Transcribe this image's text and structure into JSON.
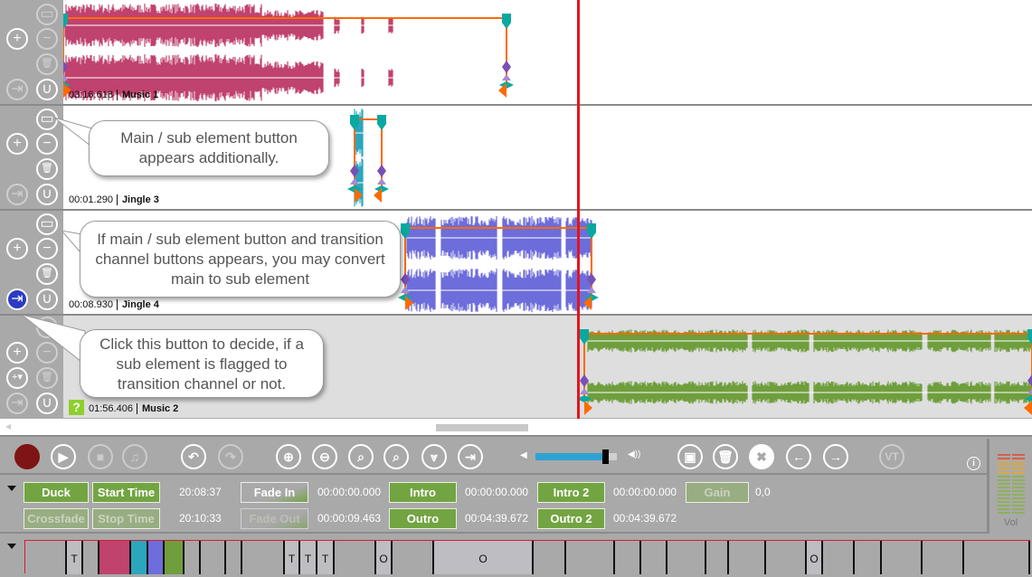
{
  "tracks": [
    {
      "time": "03:16.618",
      "name": "Music 1",
      "color": "#c0436e"
    },
    {
      "time": "00:01.290",
      "name": "Jingle 3",
      "color": "#2ba7bd"
    },
    {
      "time": "00:08.930",
      "name": "Jingle 4",
      "color": "#6d6ddb"
    },
    {
      "time": "01:56.406",
      "name": "Music 2",
      "color": "#6f9e3c"
    }
  ],
  "callouts": {
    "main_sub": "Main / sub element button appears additionally.",
    "convert": "If main / sub element button and transition channel buttons appears, you may convert main to sub element",
    "transition": "Click this button to decide, if a sub element is flagged to transition channel or not."
  },
  "track_buttons": {
    "add": "+",
    "remove": "−",
    "delete": "🗑",
    "transition": "⇥",
    "fade": "∪",
    "main_sub": "▭",
    "add_menu": "+▾"
  },
  "toolbar": {
    "vt": "VT",
    "info": "i"
  },
  "volume": {
    "level": 0.86
  },
  "props": {
    "duck": "Duck",
    "start_time": "Start Time",
    "start_time_value": "20:08:37",
    "fade_in": "Fade In",
    "fade_in_value": "00:00:00.000",
    "intro": "Intro",
    "intro_value": "00:00:00.000",
    "intro2": "Intro 2",
    "intro2_value": "00:00:00.000",
    "gain": "Gain",
    "gain_value": "0,0",
    "crossfade": "Crossfade",
    "stop_time": "Stop Time",
    "stop_time_value": "20:10:33",
    "fade_out": "Fade Out",
    "fade_out_value": "00:00:09.463",
    "outro": "Outro",
    "outro_value": "00:04:39.672",
    "outro2": "Outro 2",
    "outro2_value": "00:04:39.672"
  },
  "vu": {
    "label": "Vol"
  },
  "colors": {
    "playhead": "#e4141c",
    "marker_orange": "#ff6a00",
    "marker_teal": "#0aa8a0",
    "marker_purple": "#7a4fb5"
  },
  "strip_cells": [
    {
      "label": ""
    },
    {
      "label": "T"
    },
    {
      "label": ""
    },
    {
      "label": "",
      "color": "#c0436e"
    },
    {
      "label": "",
      "color": "#2ba7bd"
    },
    {
      "label": "",
      "color": "#6d6ddb"
    },
    {
      "label": "",
      "color": "#6f9e3c"
    },
    {
      "label": ""
    },
    {
      "label": ""
    },
    {
      "label": ""
    },
    {
      "label": ""
    },
    {
      "label": "T"
    },
    {
      "label": "T"
    },
    {
      "label": "T"
    },
    {
      "label": ""
    },
    {
      "label": "O"
    },
    {
      "label": ""
    },
    {
      "label": "O"
    },
    {
      "label": ""
    },
    {
      "label": ""
    },
    {
      "label": ""
    },
    {
      "label": ""
    },
    {
      "label": ""
    },
    {
      "label": ""
    },
    {
      "label": ""
    },
    {
      "label": ""
    },
    {
      "label": "O"
    },
    {
      "label": ""
    },
    {
      "label": ""
    },
    {
      "label": ""
    },
    {
      "label": ""
    },
    {
      "label": ""
    }
  ]
}
